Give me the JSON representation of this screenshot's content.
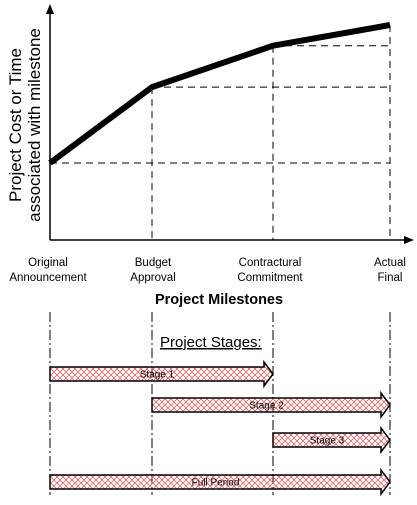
{
  "y_axis_label": {
    "line1": "Project Cost or Time",
    "line2": "associated with milestone"
  },
  "x_axis_title": "Project Milestones",
  "milestones": [
    {
      "line1": "Original",
      "line2": "Announcement"
    },
    {
      "line1": "Budget",
      "line2": "Approval"
    },
    {
      "line1": "Contractural",
      "line2": "Commitment"
    },
    {
      "line1": "Actual",
      "line2": "Final"
    }
  ],
  "curve_levels": [
    0.0,
    0.55,
    0.85,
    1.0
  ],
  "stages_title": "Project Stages:",
  "stages": [
    {
      "label": "Stage 1",
      "from": 0,
      "to": 2
    },
    {
      "label": "Stage 2",
      "from": 1,
      "to": 3
    },
    {
      "label": "Stage 3",
      "from": 2,
      "to": 3
    },
    {
      "label": "Full Period",
      "from": 0,
      "to": 3
    }
  ],
  "colors": {
    "line": "#000000",
    "hatch": "#e06666",
    "background": "#ffffff"
  }
}
